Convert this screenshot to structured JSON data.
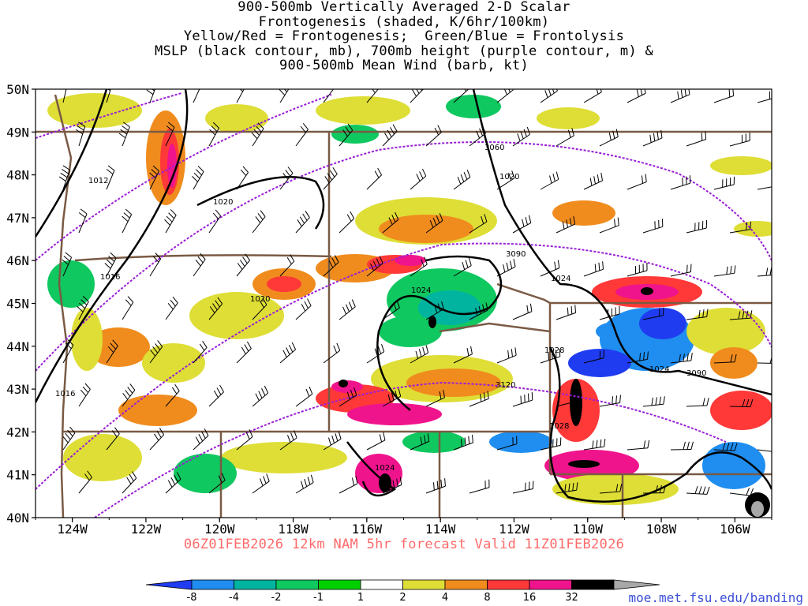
{
  "title": {
    "lines": [
      "900-500mb Vertically Averaged 2-D Scalar",
      "Frontogenesis (shaded, K/6hr/100km)",
      "Yellow/Red = Frontogenesis;  Green/Blue = Frontolysis",
      "MSLP (black contour, mb), 700mb height (purple contour, m) &",
      "900-500mb Mean Wind (barb, kt)"
    ]
  },
  "map": {
    "lat_labels": [
      "50N",
      "49N",
      "48N",
      "47N",
      "46N",
      "45N",
      "44N",
      "43N",
      "42N",
      "41N",
      "40N"
    ],
    "lon_labels": [
      "124W",
      "122W",
      "120W",
      "118W",
      "116W",
      "114W",
      "112W",
      "110W",
      "108W",
      "106W"
    ],
    "lat_range": [
      40,
      50
    ],
    "lon_range": [
      -125,
      -105
    ],
    "mslp_labels": [
      "1012",
      "1020",
      "1016",
      "1020",
      "1016",
      "1024",
      "1024",
      "1020",
      "1028",
      "1024",
      "1028",
      "1024"
    ],
    "height_labels": [
      "3060",
      "3090",
      "3090",
      "3120"
    ]
  },
  "forecast": "06Z01FEB2026 12km NAM 5hr forecast Valid 11Z01FEB2026",
  "legend": {
    "ticks": [
      "-8",
      "-4",
      "-2",
      "-1",
      "1",
      "2",
      "4",
      "8",
      "16",
      "32"
    ],
    "colors": [
      "#1f3cf0",
      "#1f8ef0",
      "#00b4a0",
      "#10c860",
      "#00d000",
      "#ffffff",
      "#dede36",
      "#f08c1e",
      "#ff3838",
      "#f0148c",
      "#000000",
      "#a8a8a8"
    ]
  },
  "credit": "moe.met.fsu.edu/banding"
}
